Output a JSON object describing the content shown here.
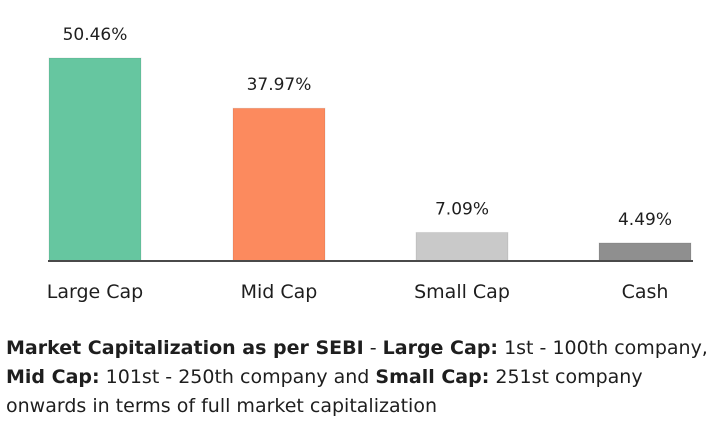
{
  "chart_data": {
    "type": "bar",
    "categories": [
      "Large Cap",
      "Mid Cap",
      "Small Cap",
      "Cash"
    ],
    "values": [
      50.46,
      37.97,
      7.09,
      4.49
    ],
    "value_labels": [
      "50.46%",
      "37.97%",
      "7.09%",
      "4.49%"
    ],
    "colors": [
      "#66c6a0",
      "#fc8a5e",
      "#c9c9c9",
      "#8f8f8f"
    ],
    "title": "",
    "xlabel": "",
    "ylabel": "",
    "ylim": [
      0,
      55
    ],
    "grid": false,
    "legend": "none"
  },
  "footnote": {
    "part1_bold": "Market Capitalization as per SEBI",
    "part2": " - ",
    "part3_bold": "Large Cap:",
    "part4": " 1st - 100th company, ",
    "part5_bold": "Mid Cap:",
    "part6": " 101st - 250th company and ",
    "part7_bold": "Small Cap:",
    "part8": " 251st company onwards in terms of full market capitalization"
  }
}
